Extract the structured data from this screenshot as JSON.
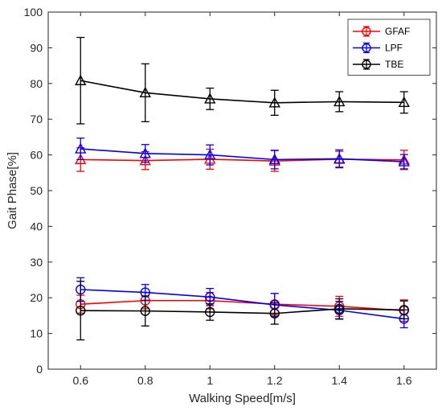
{
  "chart_data": {
    "type": "line",
    "xlabel": "Walking Speed[m/s]",
    "ylabel": "Gait Phase[%]",
    "xlim": [
      0.5,
      1.7
    ],
    "ylim": [
      0,
      100
    ],
    "x_ticks": [
      0.6,
      0.8,
      1,
      1.2,
      1.4,
      1.6
    ],
    "x_tick_labels": [
      "0.6",
      "0.8",
      "1",
      "1.2",
      "1.4",
      "1.6"
    ],
    "y_ticks": [
      0,
      10,
      20,
      30,
      40,
      50,
      60,
      70,
      80,
      90,
      100
    ],
    "y_tick_labels": [
      "0",
      "10",
      "20",
      "30",
      "40",
      "50",
      "60",
      "70",
      "80",
      "90",
      "100"
    ],
    "grid": false,
    "legend_position": "top-right",
    "x": [
      0.6,
      0.8,
      1.0,
      1.2,
      1.4,
      1.6
    ],
    "series": [
      {
        "name": "GFAF",
        "color": "#ff0000",
        "legend": true,
        "marker": "circle",
        "values": [
          18.2,
          19.2,
          19.2,
          18.2,
          17.6,
          16.4
        ],
        "errors": [
          2.5,
          2.3,
          2.3,
          3.0,
          2.8,
          3.0
        ]
      },
      {
        "name": "LPF",
        "color": "#0000ff",
        "legend": true,
        "marker": "circle",
        "values": [
          22.3,
          21.5,
          20.2,
          18.0,
          16.5,
          14.1
        ],
        "errors": [
          3.3,
          2.2,
          2.4,
          3.2,
          2.5,
          2.5
        ]
      },
      {
        "name": "TBE",
        "color": "#000000",
        "legend": true,
        "marker": "circle",
        "values": [
          16.4,
          16.3,
          16.0,
          15.6,
          16.9,
          16.6
        ],
        "errors": [
          8.2,
          4.2,
          2.3,
          3.0,
          2.8,
          2.5
        ]
      },
      {
        "color": "#ff0000",
        "legend": false,
        "marker": "triangle",
        "values": [
          58.7,
          58.4,
          58.8,
          58.3,
          58.8,
          58.6
        ],
        "errors": [
          3.3,
          2.5,
          2.8,
          2.9,
          2.2,
          2.7
        ]
      },
      {
        "color": "#0000ff",
        "legend": false,
        "marker": "triangle",
        "values": [
          61.7,
          60.4,
          60.0,
          58.7,
          58.9,
          58.1
        ],
        "errors": [
          3.0,
          2.5,
          2.8,
          2.6,
          2.5,
          2.0
        ]
      },
      {
        "color": "#000000",
        "legend": false,
        "marker": "triangle",
        "values": [
          80.8,
          77.4,
          75.7,
          74.6,
          74.9,
          74.7
        ],
        "errors": [
          12.1,
          8.1,
          3.0,
          3.5,
          2.8,
          3.0
        ]
      }
    ]
  }
}
